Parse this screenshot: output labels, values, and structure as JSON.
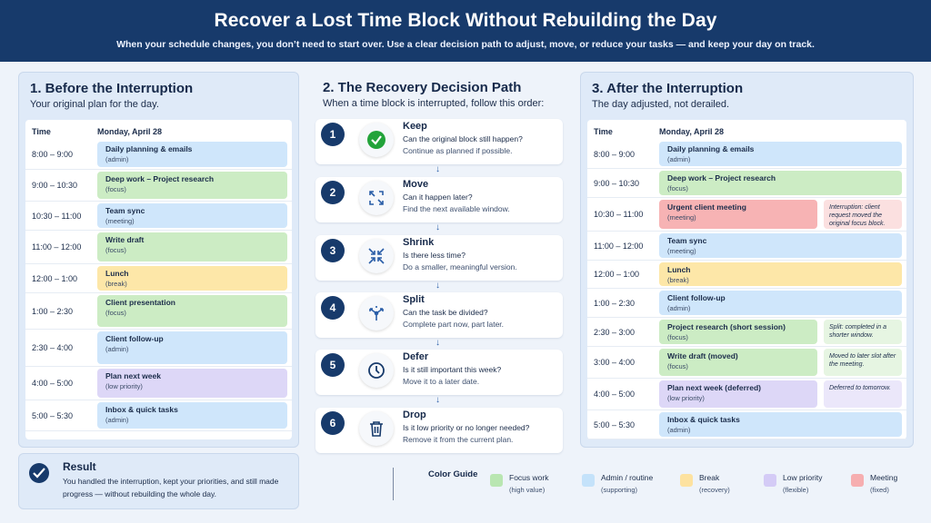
{
  "header": {
    "title": "Recover a Lost Time Block Without Rebuilding the Day",
    "subtitle": "When your schedule changes, you don’t need to start over. Use a clear decision path to adjust, move, or reduce your tasks — and keep your day on track."
  },
  "before": {
    "title": "1.  Before the Interruption",
    "subtitle": "Your original plan for the day.",
    "col_time": "Time",
    "col_day": "Monday, April 28",
    "rows": [
      {
        "time": "8:00 – 9:00",
        "task": "Daily planning & emails",
        "tag": "(admin)",
        "color": "blue"
      },
      {
        "time": "9:00 – 10:30",
        "task": "Deep work – Project research",
        "tag": "(focus)",
        "color": "green"
      },
      {
        "time": "10:30 – 11:00",
        "task": "Team sync",
        "tag": "(meeting)",
        "color": "blue"
      },
      {
        "time": "11:00 – 12:00",
        "task": "Write draft",
        "tag": "(focus)",
        "color": "green"
      },
      {
        "time": "12:00 – 1:00",
        "task": "Lunch",
        "tag": "(break)",
        "color": "yellow"
      },
      {
        "time": "1:00 – 2:30",
        "task": "Client presentation",
        "tag": "(focus)",
        "color": "green"
      },
      {
        "time": "2:30 – 4:00",
        "task": "Client follow-up",
        "tag": "(admin)",
        "color": "blue"
      },
      {
        "time": "4:00 – 5:00",
        "task": "Plan next week",
        "tag": "(low priority)",
        "color": "purple"
      },
      {
        "time": "5:00 – 5:30",
        "task": "Inbox & quick tasks",
        "tag": "(admin)",
        "color": "blue"
      }
    ]
  },
  "path": {
    "title": "2.  The Recovery Decision Path",
    "subtitle": "When a time block is interrupted, follow this order:",
    "arrow": "↓",
    "steps": [
      {
        "num": "1",
        "title": "Keep",
        "question": "Can the original block still happen?",
        "action": "Continue as planned if possible.",
        "icon": "check-circle-icon"
      },
      {
        "num": "2",
        "title": "Move",
        "question": "Can it happen later?",
        "action": "Find the next available window.",
        "icon": "move-arrows-icon"
      },
      {
        "num": "3",
        "title": "Shrink",
        "question": "Is there less time?",
        "action": "Do a smaller, meaningful version.",
        "icon": "shrink-arrows-icon"
      },
      {
        "num": "4",
        "title": "Split",
        "question": "Can the task be divided?",
        "action": "Complete part now, part later.",
        "icon": "split-arrow-icon"
      },
      {
        "num": "5",
        "title": "Defer",
        "question": "Is it still important this week?",
        "action": "Move it to a later date.",
        "icon": "clock-icon"
      },
      {
        "num": "6",
        "title": "Drop",
        "question": "Is it low priority or no longer needed?",
        "action": "Remove it from the current plan.",
        "icon": "trash-icon"
      }
    ]
  },
  "after": {
    "title": "3.  After the Interruption",
    "subtitle": "The day adjusted, not derailed.",
    "col_time": "Time",
    "col_day": "Monday, April 28",
    "rows": [
      {
        "time": "8:00 – 9:00",
        "task": "Daily planning & emails",
        "tag": "(admin)",
        "color": "blue",
        "note": ""
      },
      {
        "time": "9:00 – 10:30",
        "task": "Deep work – Project research",
        "tag": "(focus)",
        "color": "green",
        "note": ""
      },
      {
        "time": "10:30 – 11:00",
        "task": "Urgent client meeting",
        "tag": "(meeting)",
        "color": "red",
        "note": "Interruption: client request moved the original focus block."
      },
      {
        "time": "11:00 – 12:00",
        "task": "Team sync",
        "tag": "(meeting)",
        "color": "blue",
        "note": ""
      },
      {
        "time": "12:00 – 1:00",
        "task": "Lunch",
        "tag": "(break)",
        "color": "yellow",
        "note": ""
      },
      {
        "time": "1:00 – 2:30",
        "task": "Client follow-up",
        "tag": "(admin)",
        "color": "blue",
        "note": ""
      },
      {
        "time": "2:30 – 3:00",
        "task": "Project research (short session)",
        "tag": "(focus)",
        "color": "green",
        "note": "Split: completed in a shorter window."
      },
      {
        "time": "3:00 – 4:00",
        "task": "Write draft (moved)",
        "tag": "(focus)",
        "color": "green",
        "note": "Moved to later slot after the meeting."
      },
      {
        "time": "4:00 – 5:00",
        "task": "Plan next week (deferred)",
        "tag": "(low priority)",
        "color": "purple",
        "note": "Deferred to tomorrow."
      },
      {
        "time": "5:00 – 5:30",
        "task": "Inbox & quick tasks",
        "tag": "(admin)",
        "color": "blue",
        "note": ""
      }
    ]
  },
  "result": {
    "title": "Result",
    "text": "You handled the interruption, kept your priorities, and still made progress — without rebuilding the whole day."
  },
  "guide": {
    "title": "Color Guide",
    "items": [
      {
        "label": "Focus work",
        "sub": "(high value)",
        "color": "#b9e6b1"
      },
      {
        "label": "Admin / routine",
        "sub": "(supporting)",
        "color": "#c4e2fa"
      },
      {
        "label": "Break",
        "sub": "(recovery)",
        "color": "#fde2a0"
      },
      {
        "label": "Low priority",
        "sub": "(flexible)",
        "color": "#d4cbf6"
      },
      {
        "label": "Meeting",
        "sub": "(fixed)",
        "color": "#f6aeb0"
      }
    ]
  }
}
